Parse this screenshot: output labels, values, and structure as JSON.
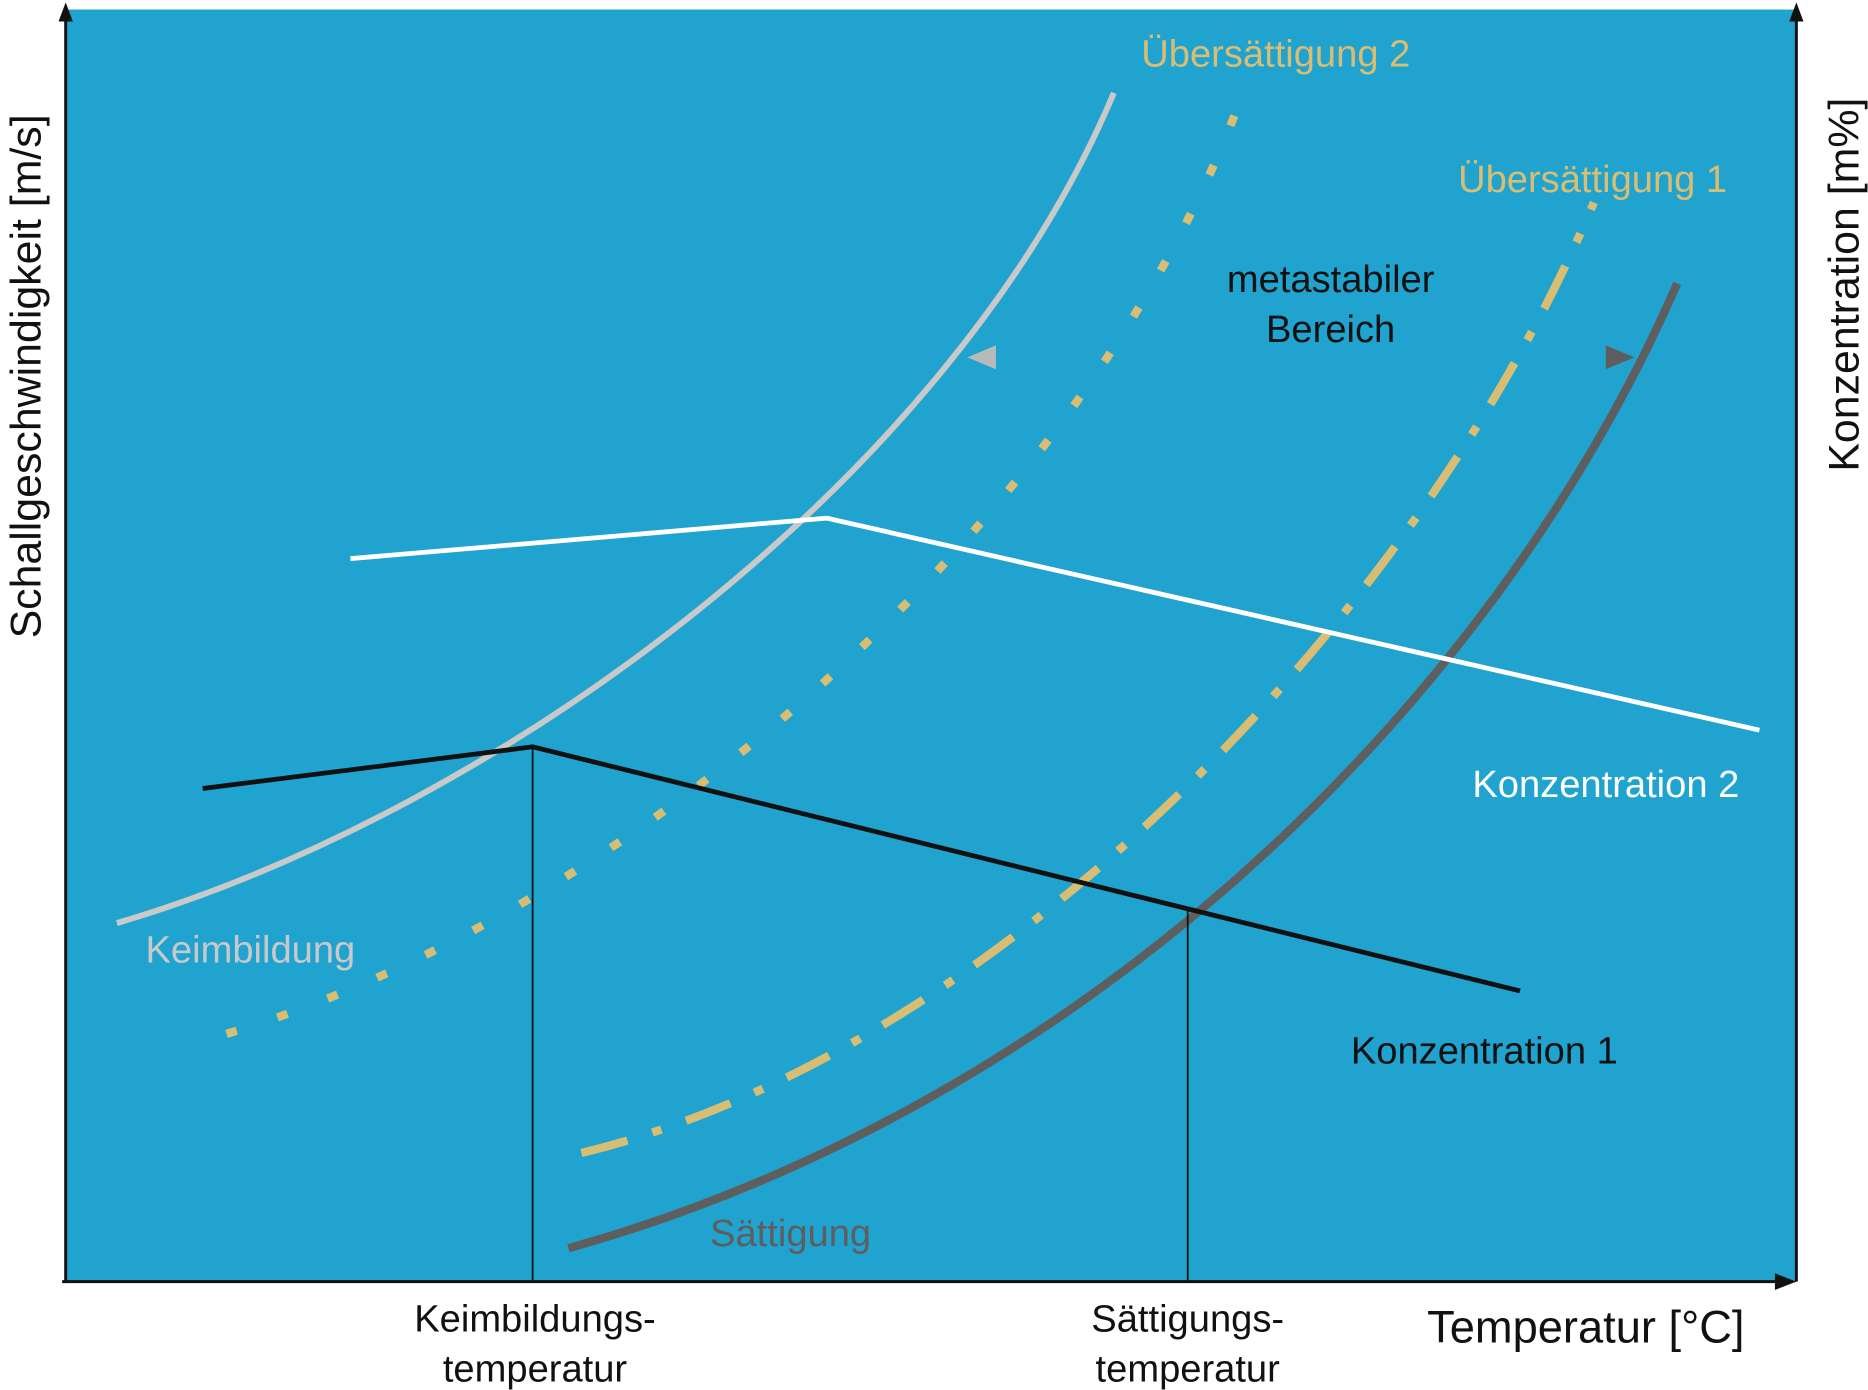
{
  "axes": {
    "y_left_label": "Schallgeschwindigkeit [m/s]",
    "y_right_label": "Konzentration [m%]",
    "x_label": "Temperatur [°C]"
  },
  "x_ticks": {
    "nucleation_line1": "Keimbildungs-",
    "nucleation_line2": "temperatur",
    "saturation_line1": "Sättigungs-",
    "saturation_line2": "temperatur"
  },
  "curves": {
    "nucleation": "Keimbildung",
    "supersaturation2": "Übersättigung 2",
    "supersaturation1": "Übersättigung 1",
    "saturation": "Sättigung",
    "concentration2": "Konzentration 2",
    "concentration1": "Konzentration 1"
  },
  "metastable": {
    "line1": "metastabiler",
    "line2": "Bereich"
  },
  "colors": {
    "background": "#21a3cf",
    "nucleation": "#c9c9c9",
    "supersaturation": "#d9bd72",
    "saturation": "#5e5e5e",
    "concentration2": "#ffffff",
    "concentration1": "#111111"
  }
}
